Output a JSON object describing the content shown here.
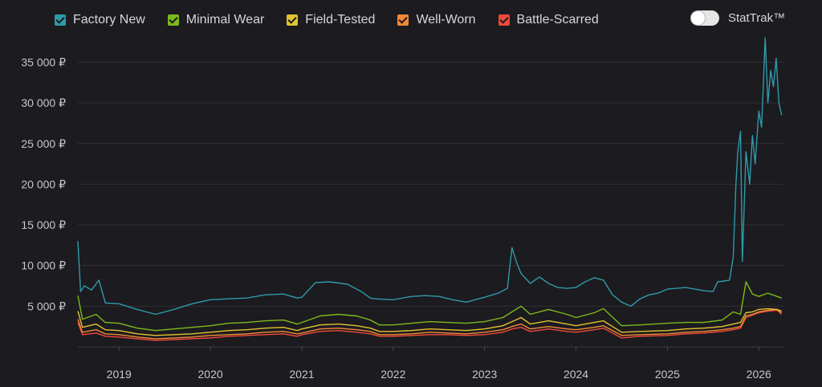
{
  "legend": {
    "items": [
      {
        "label": "Factory New",
        "color": "#2f9aa8"
      },
      {
        "label": "Minimal Wear",
        "color": "#7dba1a"
      },
      {
        "label": "Field-Tested",
        "color": "#e2c22f"
      },
      {
        "label": "Well-Worn",
        "color": "#f08a36"
      },
      {
        "label": "Battle-Scarred",
        "color": "#f04a3a"
      }
    ]
  },
  "toggle": {
    "label": "StatTrak™",
    "state": "off"
  },
  "chart_data": {
    "type": "line",
    "y_ticks": [
      {
        "value": 5000,
        "label": "5 000 ₽"
      },
      {
        "value": 10000,
        "label": "10 000 ₽"
      },
      {
        "value": 15000,
        "label": "15 000 ₽"
      },
      {
        "value": 20000,
        "label": "20 000 ₽"
      },
      {
        "value": 25000,
        "label": "25 000 ₽"
      },
      {
        "value": 30000,
        "label": "30 000 ₽"
      },
      {
        "value": 35000,
        "label": "35 000 ₽"
      }
    ],
    "x_ticks": [
      {
        "value": 2019,
        "label": "2019"
      },
      {
        "value": 2020,
        "label": "2020"
      },
      {
        "value": 2021,
        "label": "2021"
      },
      {
        "value": 2022,
        "label": "2022"
      },
      {
        "value": 2023,
        "label": "2023"
      },
      {
        "value": 2024,
        "label": "2024"
      },
      {
        "value": 2025,
        "label": "2025"
      },
      {
        "value": 2026,
        "label": "2026"
      }
    ],
    "xlim": [
      2018.55,
      2026.27
    ],
    "ylim": [
      0,
      38700
    ],
    "grid": "horizontal",
    "series": [
      {
        "name": "Factory New",
        "color": "#2f9aa8",
        "x": [
          2018.55,
          2018.58,
          2018.62,
          2018.7,
          2018.78,
          2018.85,
          2019.0,
          2019.2,
          2019.4,
          2019.6,
          2019.8,
          2020.0,
          2020.2,
          2020.4,
          2020.6,
          2020.8,
          2020.95,
          2021.0,
          2021.15,
          2021.3,
          2021.5,
          2021.65,
          2021.75,
          2021.8,
          2022.0,
          2022.2,
          2022.35,
          2022.5,
          2022.65,
          2022.8,
          2023.0,
          2023.15,
          2023.25,
          2023.3,
          2023.35,
          2023.4,
          2023.5,
          2023.6,
          2023.7,
          2023.8,
          2023.9,
          2024.0,
          2024.1,
          2024.2,
          2024.3,
          2024.4,
          2024.5,
          2024.6,
          2024.7,
          2024.8,
          2024.9,
          2025.0,
          2025.2,
          2025.4,
          2025.5,
          2025.55,
          2025.62,
          2025.68,
          2025.72,
          2025.75,
          2025.77,
          2025.8,
          2025.82,
          2025.86,
          2025.9,
          2025.93,
          2025.96,
          2026.0,
          2026.03,
          2026.05,
          2026.07,
          2026.1,
          2026.13,
          2026.16,
          2026.19,
          2026.22,
          2026.25
        ],
        "y": [
          13000,
          6800,
          7500,
          7000,
          8200,
          5400,
          5300,
          4600,
          4000,
          4600,
          5300,
          5800,
          5900,
          6000,
          6400,
          6500,
          6000,
          6100,
          7900,
          8000,
          7700,
          6800,
          6000,
          5900,
          5800,
          6200,
          6300,
          6200,
          5800,
          5500,
          6100,
          6600,
          7200,
          12200,
          10400,
          9000,
          7800,
          8600,
          7800,
          7300,
          7200,
          7300,
          8000,
          8500,
          8200,
          6400,
          5500,
          5000,
          5900,
          6400,
          6600,
          7100,
          7300,
          6900,
          6800,
          8000,
          8100,
          8200,
          11000,
          20000,
          24000,
          26500,
          10500,
          24000,
          20000,
          26000,
          22500,
          29000,
          27000,
          32500,
          38000,
          30000,
          34000,
          32000,
          35500,
          30000,
          28500
        ]
      },
      {
        "name": "Minimal Wear",
        "color": "#7dba1a",
        "x": [
          2018.55,
          2018.6,
          2018.75,
          2018.85,
          2019.0,
          2019.2,
          2019.4,
          2019.6,
          2019.8,
          2020.0,
          2020.2,
          2020.4,
          2020.6,
          2020.8,
          2020.95,
          2021.0,
          2021.2,
          2021.4,
          2021.6,
          2021.75,
          2021.85,
          2022.0,
          2022.2,
          2022.4,
          2022.6,
          2022.8,
          2023.0,
          2023.2,
          2023.3,
          2023.4,
          2023.5,
          2023.7,
          2023.9,
          2024.0,
          2024.2,
          2024.3,
          2024.5,
          2024.7,
          2025.0,
          2025.2,
          2025.4,
          2025.6,
          2025.72,
          2025.8,
          2025.86,
          2025.93,
          2026.0,
          2026.1,
          2026.2,
          2026.25
        ],
        "y": [
          6300,
          3400,
          4000,
          3000,
          2900,
          2300,
          2000,
          2200,
          2400,
          2600,
          2900,
          3000,
          3200,
          3300,
          2800,
          3000,
          3800,
          4000,
          3800,
          3300,
          2700,
          2700,
          2900,
          3100,
          3000,
          2900,
          3100,
          3600,
          4300,
          5000,
          4000,
          4600,
          4000,
          3600,
          4200,
          4700,
          2600,
          2700,
          2900,
          3000,
          3000,
          3300,
          4300,
          4000,
          8000,
          6500,
          6200,
          6600,
          6200,
          6000
        ]
      },
      {
        "name": "Field-Tested",
        "color": "#e2c22f",
        "x": [
          2018.55,
          2018.6,
          2018.75,
          2018.85,
          2019.0,
          2019.2,
          2019.4,
          2019.6,
          2019.8,
          2020.0,
          2020.2,
          2020.4,
          2020.6,
          2020.8,
          2020.95,
          2021.0,
          2021.2,
          2021.4,
          2021.6,
          2021.75,
          2021.85,
          2022.0,
          2022.2,
          2022.4,
          2022.6,
          2022.8,
          2023.0,
          2023.2,
          2023.3,
          2023.4,
          2023.5,
          2023.7,
          2023.9,
          2024.0,
          2024.2,
          2024.3,
          2024.5,
          2024.7,
          2025.0,
          2025.2,
          2025.4,
          2025.6,
          2025.72,
          2025.8,
          2025.86,
          2025.93,
          2026.0,
          2026.1,
          2026.2,
          2026.25
        ],
        "y": [
          4400,
          2400,
          2800,
          2100,
          2000,
          1600,
          1400,
          1500,
          1600,
          1800,
          2000,
          2100,
          2300,
          2400,
          2000,
          2200,
          2700,
          2800,
          2600,
          2300,
          1900,
          1900,
          2000,
          2200,
          2100,
          2000,
          2200,
          2600,
          3100,
          3600,
          2800,
          3200,
          2800,
          2600,
          3000,
          3200,
          1800,
          1900,
          2000,
          2200,
          2300,
          2500,
          2800,
          3000,
          4200,
          4300,
          4600,
          4700,
          4600,
          4400
        ]
      },
      {
        "name": "Well-Worn",
        "color": "#f08a36",
        "x": [
          2018.55,
          2018.6,
          2018.75,
          2018.85,
          2019.0,
          2019.2,
          2019.4,
          2019.6,
          2019.8,
          2020.0,
          2020.2,
          2020.4,
          2020.6,
          2020.8,
          2020.95,
          2021.0,
          2021.2,
          2021.4,
          2021.6,
          2021.75,
          2021.85,
          2022.0,
          2022.2,
          2022.4,
          2022.6,
          2022.8,
          2023.0,
          2023.2,
          2023.3,
          2023.4,
          2023.5,
          2023.7,
          2023.9,
          2024.0,
          2024.2,
          2024.3,
          2024.5,
          2024.7,
          2025.0,
          2025.2,
          2025.4,
          2025.6,
          2025.72,
          2025.8,
          2025.86,
          2025.93,
          2026.0,
          2026.1,
          2026.2,
          2026.25
        ],
        "y": [
          3400,
          1800,
          2100,
          1600,
          1500,
          1200,
          1000,
          1100,
          1200,
          1400,
          1500,
          1600,
          1800,
          1900,
          1600,
          1700,
          2200,
          2300,
          2100,
          1900,
          1500,
          1500,
          1600,
          1800,
          1700,
          1600,
          1800,
          2100,
          2500,
          2800,
          2200,
          2500,
          2200,
          2100,
          2400,
          2600,
          1400,
          1500,
          1600,
          1800,
          1900,
          2100,
          2300,
          2500,
          3800,
          4000,
          4300,
          4500,
          4600,
          4200
        ]
      },
      {
        "name": "Battle-Scarred",
        "color": "#f04a3a",
        "x": [
          2018.55,
          2018.6,
          2018.75,
          2018.85,
          2019.0,
          2019.2,
          2019.4,
          2019.6,
          2019.8,
          2020.0,
          2020.2,
          2020.4,
          2020.6,
          2020.8,
          2020.95,
          2021.0,
          2021.2,
          2021.4,
          2021.6,
          2021.75,
          2021.85,
          2022.0,
          2022.2,
          2022.4,
          2022.6,
          2022.8,
          2023.0,
          2023.2,
          2023.3,
          2023.4,
          2023.5,
          2023.7,
          2023.9,
          2024.0,
          2024.2,
          2024.3,
          2024.5,
          2024.7,
          2025.0,
          2025.2,
          2025.4,
          2025.6,
          2025.72,
          2025.8,
          2025.86,
          2025.93,
          2026.0,
          2026.1,
          2026.2,
          2026.25
        ],
        "y": [
          3000,
          1500,
          1700,
          1300,
          1200,
          1000,
          800,
          900,
          1000,
          1100,
          1300,
          1400,
          1500,
          1600,
          1300,
          1500,
          1900,
          2000,
          1800,
          1600,
          1300,
          1300,
          1400,
          1500,
          1500,
          1400,
          1500,
          1800,
          2200,
          2400,
          1900,
          2200,
          1900,
          1800,
          2100,
          2300,
          1100,
          1300,
          1400,
          1600,
          1700,
          1900,
          2100,
          2300,
          3600,
          3900,
          4200,
          4400,
          4500,
          4000
        ]
      }
    ]
  }
}
